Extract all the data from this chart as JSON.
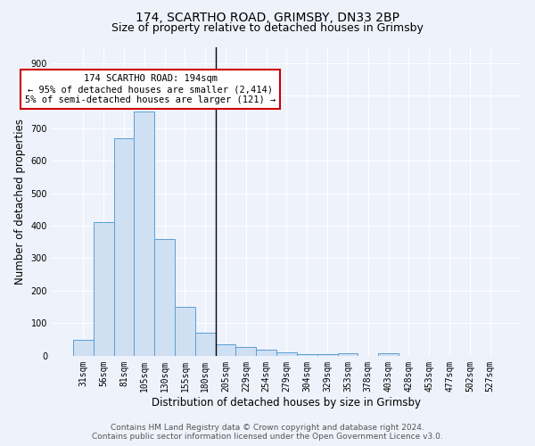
{
  "title": "174, SCARTHO ROAD, GRIMSBY, DN33 2BP",
  "subtitle": "Size of property relative to detached houses in Grimsby",
  "xlabel": "Distribution of detached houses by size in Grimsby",
  "ylabel": "Number of detached properties",
  "bar_labels": [
    "31sqm",
    "56sqm",
    "81sqm",
    "105sqm",
    "130sqm",
    "155sqm",
    "180sqm",
    "205sqm",
    "229sqm",
    "254sqm",
    "279sqm",
    "304sqm",
    "329sqm",
    "353sqm",
    "378sqm",
    "403sqm",
    "428sqm",
    "453sqm",
    "477sqm",
    "502sqm",
    "527sqm"
  ],
  "bar_values": [
    48,
    410,
    670,
    750,
    360,
    150,
    70,
    35,
    28,
    18,
    10,
    6,
    4,
    8,
    0,
    8,
    0,
    0,
    0,
    0,
    0
  ],
  "bar_color": "#cfe0f3",
  "bar_edge_color": "#5a9fd4",
  "vline_color": "#000000",
  "annotation_text": "174 SCARTHO ROAD: 194sqm\n← 95% of detached houses are smaller (2,414)\n5% of semi-detached houses are larger (121) →",
  "annotation_box_color": "#ffffff",
  "annotation_box_edge": "#cc0000",
  "ylim": [
    0,
    950
  ],
  "yticks": [
    0,
    100,
    200,
    300,
    400,
    500,
    600,
    700,
    800,
    900
  ],
  "footer_line1": "Contains HM Land Registry data © Crown copyright and database right 2024.",
  "footer_line2": "Contains public sector information licensed under the Open Government Licence v3.0.",
  "bg_color": "#eef2fb",
  "grid_color": "#ffffff",
  "title_fontsize": 10,
  "subtitle_fontsize": 9,
  "axis_label_fontsize": 8.5,
  "tick_fontsize": 7,
  "annotation_fontsize": 7.5,
  "footer_fontsize": 6.5
}
